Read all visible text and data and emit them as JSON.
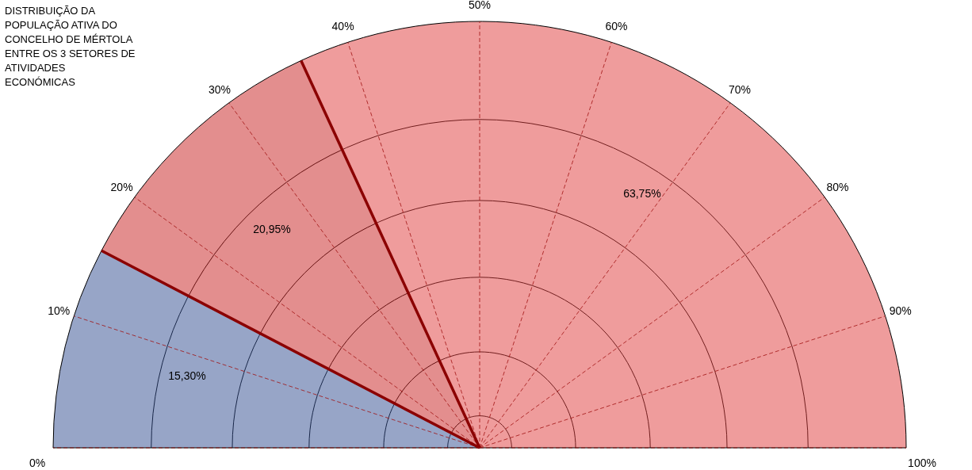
{
  "chart_data": {
    "type": "pie",
    "title": "DISTRIBUIÇÃO DA\nPOPULAÇÃO ATIVA DO\nCONCELHO DE MÉRTOLA\nENTRE OS 3 SETORES DE\nATIVIDADES\nECONÓMICAS",
    "categories": [
      null,
      null,
      null
    ],
    "values": [
      15.3,
      20.95,
      63.75
    ],
    "value_labels": [
      "15,30%",
      "20,95%",
      "63,75%"
    ],
    "colors": [
      "#2f4b8f",
      "#c81e1e",
      "#e03a3a"
    ],
    "annotations": [
      "0%",
      "10%",
      "20%",
      "30%",
      "40%",
      "50%",
      "60%",
      "70%",
      "80%",
      "90%",
      "100%"
    ],
    "grid": true
  }
}
